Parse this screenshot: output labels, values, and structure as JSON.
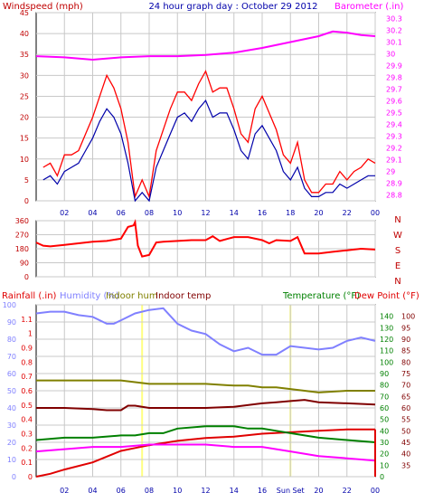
{
  "colors": {
    "wind": "#ff0000",
    "wind_avg": "#0000aa",
    "baro": "#ff00ff",
    "title": "#0000aa",
    "grid": "#c8c8c8",
    "rain": "#e00000",
    "humidity": "#8080ff",
    "indoor_hum": "#808000",
    "indoor_temp": "#800000",
    "temperature": "#008000",
    "dewpoint": "#e00000",
    "dewpoint_line": "#ff00ff",
    "sun": "#ffff80"
  },
  "chart_data": [
    {
      "type": "line",
      "title": "24 hour graph day : October 29 2012",
      "ylabel": "Windspeed (mph)",
      "y2label": "Barometer (.in)",
      "x_ticks": [
        "02",
        "04",
        "06",
        "08",
        "10",
        "12",
        "14",
        "16",
        "18",
        "20",
        "22",
        "00"
      ],
      "ylim": [
        0,
        45
      ],
      "y_ticks": [
        0,
        5,
        10,
        15,
        20,
        25,
        30,
        35,
        40,
        45
      ],
      "y2lim": [
        28.75,
        30.35
      ],
      "y2_ticks": [
        "28.8",
        "28.9",
        "29",
        "29.1",
        "29.2",
        "29.3",
        "29.4",
        "29.5",
        "29.6",
        "29.7",
        "29.8",
        "29.9",
        "30",
        "30.1",
        "30.2",
        "30.3"
      ],
      "series": [
        {
          "name": "Windspeed (mph)",
          "axis": "left",
          "x": [
            0.5,
            1,
            1.5,
            2,
            2.5,
            3,
            3.5,
            4,
            4.5,
            5,
            5.5,
            6,
            6.5,
            7,
            7.5,
            8,
            8.5,
            9,
            9.5,
            10,
            10.5,
            11,
            11.5,
            12,
            12.5,
            13,
            13.5,
            14,
            14.5,
            15,
            15.5,
            16,
            16.5,
            17,
            17.5,
            18,
            18.5,
            19,
            19.5,
            20,
            20.5,
            21,
            21.5,
            22,
            22.5,
            23,
            23.5,
            24
          ],
          "y": [
            8,
            9,
            6,
            11,
            11,
            12,
            16,
            20,
            25,
            30,
            27,
            22,
            14,
            1,
            5,
            1,
            12,
            17,
            22,
            26,
            26,
            24,
            28,
            31,
            26,
            27,
            27,
            22,
            16,
            14,
            22,
            25,
            21,
            17,
            11,
            9,
            14,
            5,
            2,
            2,
            4,
            4,
            7,
            5,
            7,
            8,
            10,
            9
          ]
        },
        {
          "name": "",
          "axis": "left",
          "x": [
            0.5,
            1,
            1.5,
            2,
            2.5,
            3,
            3.5,
            4,
            4.5,
            5,
            5.5,
            6,
            6.5,
            7,
            7.5,
            8,
            8.5,
            9,
            9.5,
            10,
            10.5,
            11,
            11.5,
            12,
            12.5,
            13,
            13.5,
            14,
            14.5,
            15,
            15.5,
            16,
            16.5,
            17,
            17.5,
            18,
            18.5,
            19,
            19.5,
            20,
            20.5,
            21,
            21.5,
            22,
            22.5,
            23,
            23.5,
            24
          ],
          "y": [
            5,
            6,
            4,
            7,
            8,
            9,
            12,
            15,
            19,
            22,
            20,
            16,
            9,
            0,
            2,
            0,
            8,
            12,
            16,
            20,
            21,
            19,
            22,
            24,
            20,
            21,
            21,
            17,
            12,
            10,
            16,
            18,
            15,
            12,
            7,
            5,
            8,
            3,
            1,
            1,
            2,
            2,
            4,
            3,
            4,
            5,
            6,
            6
          ]
        },
        {
          "name": "Barometer (.in)",
          "axis": "right",
          "x": [
            0,
            2,
            4,
            6,
            8,
            10,
            12,
            14,
            16,
            18,
            20,
            21,
            22,
            23,
            24
          ],
          "y": [
            29.98,
            29.97,
            29.95,
            29.97,
            29.98,
            29.98,
            29.99,
            30.01,
            30.05,
            30.1,
            30.15,
            30.19,
            30.18,
            30.16,
            30.15
          ]
        }
      ]
    },
    {
      "type": "line",
      "ylabel": "Wind direction",
      "x_ticks": [
        "02",
        "04",
        "06",
        "08",
        "10",
        "12",
        "14",
        "16",
        "18",
        "20",
        "22",
        "00"
      ],
      "ylim": [
        0,
        360
      ],
      "y_ticks": [
        0,
        90,
        180,
        270,
        360
      ],
      "right_labels": [
        "N",
        "W",
        "S",
        "E",
        "N"
      ],
      "series": [
        {
          "name": "",
          "x": [
            0,
            0.5,
            1,
            2,
            3,
            4,
            5,
            6,
            6.5,
            6.9,
            7,
            7.2,
            7.5,
            8,
            8.5,
            9,
            10,
            11,
            12,
            12.5,
            13,
            14,
            15,
            16,
            16.5,
            17,
            18,
            18.5,
            19,
            20,
            21,
            22,
            23,
            24
          ],
          "y": [
            220,
            200,
            195,
            205,
            215,
            225,
            230,
            245,
            320,
            330,
            350,
            200,
            130,
            140,
            220,
            225,
            230,
            235,
            235,
            260,
            230,
            255,
            255,
            235,
            215,
            235,
            230,
            255,
            150,
            150,
            160,
            170,
            180,
            175
          ]
        }
      ]
    },
    {
      "type": "line",
      "x_ticks": [
        "02",
        "04",
        "06",
        "08",
        "10",
        "12",
        "14",
        "16",
        "Sun Set",
        "20",
        "22",
        "00"
      ],
      "legend": [
        "Rainfall (.in)",
        "Humidity (%)",
        "Indoor hum",
        "Indoor temp",
        "Temperature (°F)",
        "Dew Point (°F)"
      ],
      "ylim_rain": [
        0,
        1.2
      ],
      "rain_ticks": [
        "0",
        "0.1",
        "0.2",
        "0.3",
        "0.4",
        "0.5",
        "0.6",
        "0.7",
        "0.8",
        "0.9",
        "1",
        "1.1"
      ],
      "ylim_hum": [
        0,
        100
      ],
      "hum_ticks": [
        "0",
        "10",
        "20",
        "30",
        "40",
        "50",
        "60",
        "70",
        "80",
        "90",
        "100"
      ],
      "ylim_temp_outer": [
        0,
        150
      ],
      "temp_outer_ticks": [
        "0",
        "10",
        "20",
        "30",
        "40",
        "50",
        "60",
        "70",
        "80",
        "90",
        "100",
        "110",
        "120",
        "130",
        "140"
      ],
      "ylim_temp_inner": [
        30,
        105
      ],
      "temp_inner_ticks": [
        "35",
        "40",
        "45",
        "50",
        "55",
        "60",
        "65",
        "70",
        "75",
        "80",
        "85",
        "90",
        "95",
        "100"
      ],
      "series": [
        {
          "name": "Rainfall (.in)",
          "unit": "in",
          "x": [
            0,
            1,
            2,
            4,
            5,
            6,
            7,
            8,
            10,
            12,
            14,
            16,
            18,
            20,
            22,
            24
          ],
          "y": [
            0,
            0.02,
            0.05,
            0.1,
            0.14,
            0.18,
            0.2,
            0.22,
            0.25,
            0.27,
            0.28,
            0.3,
            0.31,
            0.32,
            0.33,
            0.33
          ]
        },
        {
          "name": "Humidity (%)",
          "unit": "pct",
          "x": [
            0,
            1,
            2,
            3,
            4,
            5,
            5.5,
            6,
            7,
            8,
            9,
            10,
            11,
            12,
            13,
            14,
            15,
            16,
            17,
            18,
            19,
            20,
            21,
            22,
            23,
            24
          ],
          "y": [
            95,
            96,
            96,
            94,
            93,
            89,
            89,
            91,
            95,
            97,
            98,
            89,
            85,
            83,
            77,
            73,
            75,
            71,
            71,
            76,
            75,
            74,
            75,
            79,
            81,
            79
          ]
        },
        {
          "name": "Indoor hum",
          "unit": "pct",
          "x": [
            0,
            2,
            4,
            5.5,
            6,
            7,
            8,
            10,
            12,
            14,
            15,
            16,
            17,
            18,
            19,
            20,
            22,
            24
          ],
          "y": [
            56,
            56,
            56,
            56,
            56,
            55,
            54,
            54,
            54,
            53,
            53,
            52,
            52,
            51,
            50,
            49,
            50,
            50
          ]
        },
        {
          "name": "Indoor temp",
          "unit": "temp_outer",
          "x": [
            0,
            2,
            4,
            5,
            6,
            6.5,
            7,
            8,
            10,
            12,
            14,
            16,
            17,
            18,
            19,
            20,
            22,
            24
          ],
          "y": [
            60,
            60,
            59,
            58,
            58,
            62,
            62,
            60,
            60,
            60,
            61,
            64,
            65,
            66,
            67,
            65,
            64,
            63
          ]
        },
        {
          "name": "Temperature (°F)",
          "unit": "temp_inner",
          "x": [
            0,
            2,
            4,
            6,
            7,
            8,
            9,
            10,
            12,
            14,
            15,
            16,
            17,
            18,
            19,
            20,
            22,
            24
          ],
          "y": [
            46,
            47,
            47,
            48,
            48,
            49,
            49,
            51,
            52,
            52,
            51,
            51,
            50,
            49,
            48,
            47,
            46,
            45
          ]
        },
        {
          "name": "Dew Point (°F)",
          "unit": "temp_inner",
          "x": [
            0,
            2,
            4,
            6,
            8,
            9,
            10,
            12,
            14,
            16,
            17,
            18,
            20,
            22,
            24
          ],
          "y": [
            41,
            42,
            43,
            43,
            44,
            44,
            44,
            44,
            43,
            43,
            42,
            41,
            39,
            38,
            37
          ]
        }
      ]
    }
  ]
}
